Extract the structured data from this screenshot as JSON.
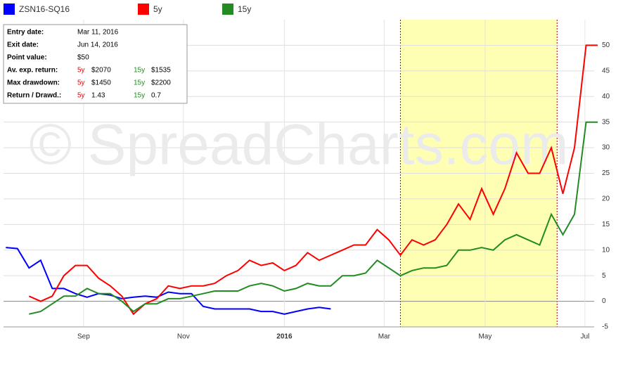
{
  "chart_data": {
    "type": "line",
    "watermark": "© SpreadCharts.com",
    "x": [
      0,
      1,
      2,
      3,
      4,
      5,
      6,
      7,
      8,
      9,
      10,
      11,
      12,
      13,
      14,
      15,
      16,
      17,
      18,
      19,
      20,
      21,
      22,
      23,
      24,
      25,
      26,
      27,
      28,
      29,
      30,
      31,
      32,
      33,
      34,
      35,
      36,
      37,
      38,
      39,
      40,
      41,
      42,
      43,
      44,
      45,
      46,
      47,
      48,
      49,
      50,
      51
    ],
    "xlim": [
      -0.2,
      51
    ],
    "xticks": [
      {
        "value": 6.7,
        "label": "Sep"
      },
      {
        "value": 15.3,
        "label": "Nov"
      },
      {
        "value": 24,
        "label": "2016"
      },
      {
        "value": 32.6,
        "label": "Mar"
      },
      {
        "value": 41.3,
        "label": "May"
      },
      {
        "value": 49.9,
        "label": "Jul"
      }
    ],
    "ylim": [
      -5,
      55
    ],
    "yticks": [
      -5,
      0,
      5,
      10,
      15,
      20,
      25,
      30,
      35,
      40,
      45,
      50
    ],
    "grid": true,
    "highlight": [
      34,
      47.5
    ],
    "highlight_color": "#ffffb4",
    "series": [
      {
        "name": "ZSN16-SQ16",
        "color": "#0000ff",
        "values": [
          10.5,
          10.3,
          6.5,
          8,
          2.5,
          2.5,
          1.5,
          0.8,
          1.5,
          1.2,
          0.5,
          0.8,
          1,
          0.8,
          1.8,
          1.5,
          1.5,
          -1,
          -1.5,
          -1.5,
          -1.5,
          -1.5,
          -2,
          -2,
          -2.5,
          -2,
          -1.5,
          -1.2,
          -1.5,
          null,
          null,
          null,
          null,
          null,
          null,
          null,
          null,
          null,
          null,
          null,
          null,
          null,
          null,
          null,
          null,
          null,
          null,
          null,
          null,
          null,
          null,
          null
        ]
      },
      {
        "name": "5y",
        "color": "#ff0000",
        "values": [
          null,
          null,
          1,
          0,
          1,
          5,
          7,
          7,
          4.5,
          3,
          1,
          -2.5,
          -0.5,
          0.5,
          3,
          2.5,
          3,
          3,
          3.5,
          5,
          6,
          8,
          7,
          7.5,
          6,
          7,
          9.5,
          8,
          9,
          10,
          11,
          11,
          14,
          12,
          9,
          12,
          11,
          12,
          15,
          19,
          16,
          22,
          17,
          22,
          29,
          25,
          25,
          30,
          21,
          30,
          50,
          50
        ]
      },
      {
        "name": "15y",
        "color": "#228b22",
        "values": [
          null,
          null,
          -2.5,
          -2,
          -0.5,
          1,
          1,
          2.5,
          1.5,
          1.5,
          0,
          -2,
          -0.5,
          -0.5,
          0.5,
          0.5,
          1,
          1.5,
          2,
          2,
          2,
          3,
          3.5,
          3,
          2,
          2.5,
          3.5,
          3,
          3,
          5,
          5,
          5.5,
          8,
          6.5,
          5,
          6,
          6.5,
          6.5,
          7,
          10,
          10,
          10.5,
          10,
          12,
          13,
          12,
          11,
          17,
          13,
          17,
          35,
          35
        ]
      }
    ]
  },
  "info": {
    "rows": [
      [
        "Entry date:",
        "Mar 11, 2016"
      ],
      [
        "Exit date:",
        "Jun 14, 2016"
      ],
      [
        "Point value:",
        "$50"
      ],
      [
        "Av. exp. return:",
        "5y",
        "$2070",
        "15y",
        "$1535"
      ],
      [
        "Max drawdown:",
        "5y",
        "$1450",
        "15y",
        "$2200"
      ],
      [
        "Return / Drawd.:",
        "5y",
        "1.43",
        "15y",
        "0.7"
      ]
    ]
  }
}
